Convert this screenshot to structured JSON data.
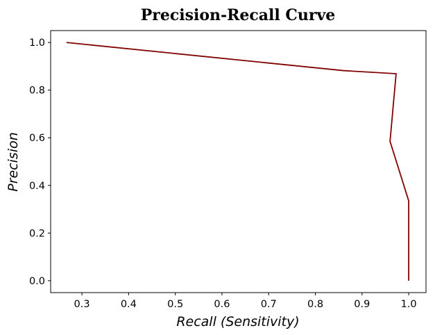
{
  "chart_data": {
    "type": "line",
    "title": "Precision-Recall Curve",
    "xlabel": "Recall (Sensitivity)",
    "ylabel": "Precision",
    "xlim": [
      0.233,
      1.037
    ],
    "ylim": [
      -0.05,
      1.05
    ],
    "xticks": [
      0.3,
      0.4,
      0.5,
      0.6,
      0.7,
      0.8,
      0.9,
      1.0
    ],
    "xtick_labels": [
      "0.3",
      "0.4",
      "0.5",
      "0.6",
      "0.7",
      "0.8",
      "0.9",
      "1.0"
    ],
    "yticks": [
      0.0,
      0.2,
      0.4,
      0.6,
      0.8,
      1.0
    ],
    "ytick_labels": [
      "0.0",
      "0.2",
      "0.4",
      "0.6",
      "0.8",
      "1.0"
    ],
    "grid": false,
    "series": [
      {
        "color": "#800000",
        "points": [
          {
            "x": 0.267,
            "y": 1.0
          },
          {
            "x": 0.86,
            "y": 0.882
          },
          {
            "x": 0.973,
            "y": 0.869
          },
          {
            "x": 0.96,
            "y": 0.585
          },
          {
            "x": 1.0,
            "y": 0.335
          },
          {
            "x": 1.0,
            "y": 0.0
          }
        ]
      }
    ]
  }
}
